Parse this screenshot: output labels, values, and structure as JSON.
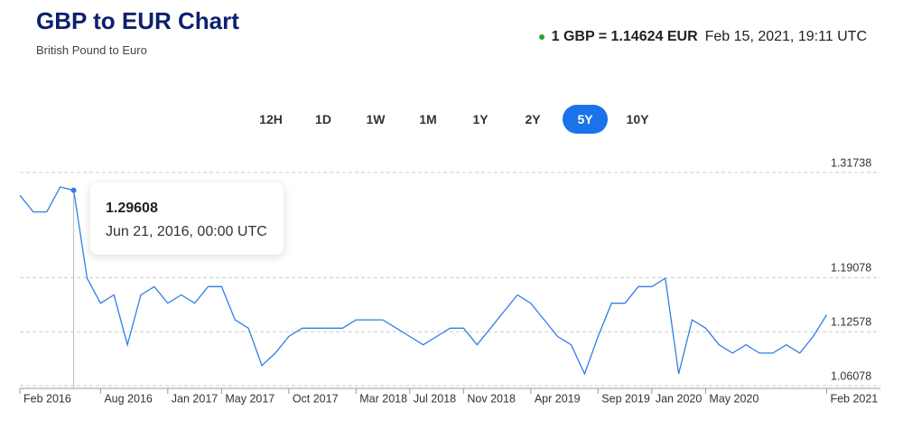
{
  "header": {
    "title": "GBP to EUR Chart",
    "subtitle": "British Pound to Euro",
    "rate": "1 GBP = 1.14624 EUR",
    "timestamp": "Feb 15, 2021, 19:11 UTC"
  },
  "controls": {
    "ranges": [
      "12H",
      "1D",
      "1W",
      "1M",
      "1Y",
      "2Y",
      "5Y",
      "10Y"
    ],
    "active": "5Y"
  },
  "chart_data": {
    "type": "line",
    "color": "#2f7fe6",
    "grid": true,
    "x": [
      "2016-02",
      "2016-03",
      "2016-04",
      "2016-05",
      "2016-06",
      "2016-07",
      "2016-08",
      "2016-09",
      "2016-10",
      "2016-11",
      "2016-12",
      "2017-01",
      "2017-02",
      "2017-03",
      "2017-04",
      "2017-05",
      "2017-06",
      "2017-07",
      "2017-08",
      "2017-09",
      "2017-10",
      "2017-11",
      "2017-12",
      "2018-01",
      "2018-02",
      "2018-03",
      "2018-04",
      "2018-05",
      "2018-06",
      "2018-07",
      "2018-08",
      "2018-09",
      "2018-10",
      "2018-11",
      "2018-12",
      "2019-01",
      "2019-02",
      "2019-03",
      "2019-04",
      "2019-05",
      "2019-06",
      "2019-07",
      "2019-08",
      "2019-09",
      "2019-10",
      "2019-11",
      "2019-12",
      "2020-01",
      "2020-02",
      "2020-03",
      "2020-04",
      "2020-05",
      "2020-06",
      "2020-07",
      "2020-08",
      "2020-09",
      "2020-10",
      "2020-11",
      "2020-12",
      "2021-01",
      "2021-02"
    ],
    "values": [
      1.29,
      1.27,
      1.27,
      1.3,
      1.296,
      1.19,
      1.16,
      1.17,
      1.11,
      1.17,
      1.18,
      1.16,
      1.17,
      1.16,
      1.18,
      1.18,
      1.14,
      1.13,
      1.085,
      1.1,
      1.12,
      1.13,
      1.13,
      1.13,
      1.13,
      1.14,
      1.14,
      1.14,
      1.13,
      1.12,
      1.11,
      1.12,
      1.13,
      1.13,
      1.11,
      1.13,
      1.15,
      1.17,
      1.16,
      1.14,
      1.12,
      1.11,
      1.075,
      1.12,
      1.16,
      1.16,
      1.18,
      1.18,
      1.19,
      1.075,
      1.14,
      1.13,
      1.11,
      1.1,
      1.11,
      1.1,
      1.1,
      1.11,
      1.1,
      1.12,
      1.146
    ],
    "xlim": [
      "2016-02",
      "2021-06"
    ],
    "xticks": [
      {
        "value": "2016-02",
        "label": "Feb 2016"
      },
      {
        "value": "2016-08",
        "label": "Aug 2016"
      },
      {
        "value": "2017-01",
        "label": "Jan 2017"
      },
      {
        "value": "2017-05",
        "label": "May 2017"
      },
      {
        "value": "2017-10",
        "label": "Oct 2017"
      },
      {
        "value": "2018-03",
        "label": "Mar 2018"
      },
      {
        "value": "2018-07",
        "label": "Jul 2018"
      },
      {
        "value": "2018-11",
        "label": "Nov 2018"
      },
      {
        "value": "2019-04",
        "label": "Apr 2019"
      },
      {
        "value": "2019-09",
        "label": "Sep 2019"
      },
      {
        "value": "2020-01",
        "label": "Jan 2020"
      },
      {
        "value": "2020-05",
        "label": "May 2020"
      },
      {
        "value": "2021-02",
        "label": "Feb 2021"
      }
    ],
    "ylim": [
      1.0575,
      1.31738
    ],
    "yticks": [
      1.06078,
      1.12578,
      1.19078,
      1.31738
    ],
    "tooltip": {
      "value": 1.29608,
      "date": "Jun 21, 2016, 00:00 UTC"
    }
  }
}
